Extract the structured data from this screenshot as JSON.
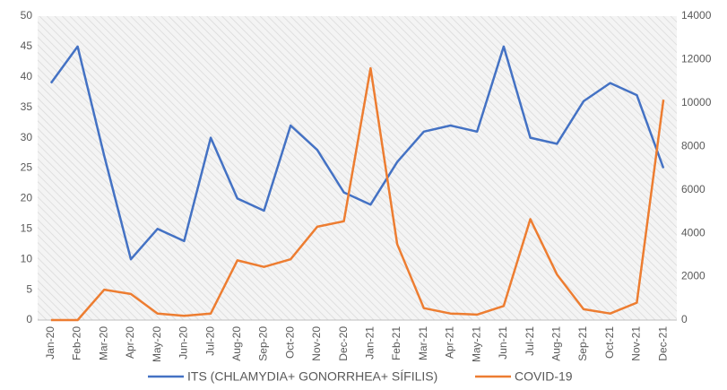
{
  "chart_data": {
    "type": "line",
    "categories": [
      "Jan-20",
      "Feb-20",
      "Mar-20",
      "Apr-20",
      "May-20",
      "Jun-20",
      "Jul-20",
      "Aug-20",
      "Sep-20",
      "Oct-20",
      "Nov-20",
      "Dec-20",
      "Jan-21",
      "Feb-21",
      "Mar-21",
      "Apr-21",
      "May-21",
      "Jun-21",
      "Jul-21",
      "Aug-21",
      "Sep-21",
      "Oct-21",
      "Nov-21",
      "Dec-21"
    ],
    "series": [
      {
        "name": "ITS (CHLAMYDIA+ GONORRHEA+ SÍFILIS)",
        "color": "#4472c4",
        "axis": "y",
        "values": [
          39,
          45,
          27,
          10,
          15,
          13,
          30,
          20,
          18,
          32,
          28,
          21,
          19,
          26,
          31,
          32,
          31,
          45,
          30,
          29,
          36,
          39,
          37,
          25
        ]
      },
      {
        "name": "COVID-19",
        "color": "#ed7d31",
        "axis": "y2",
        "values": [
          0,
          0,
          1400,
          1200,
          300,
          200,
          300,
          2750,
          2450,
          2800,
          4300,
          4550,
          11600,
          3500,
          550,
          300,
          250,
          650,
          4650,
          2100,
          500,
          300,
          800,
          10150
        ]
      }
    ],
    "ylim": [
      0,
      50
    ],
    "yticks": [
      0,
      5,
      10,
      15,
      20,
      25,
      30,
      35,
      40,
      45,
      50
    ],
    "y2lim": [
      0,
      14000
    ],
    "y2ticks": [
      0,
      2000,
      4000,
      6000,
      8000,
      10000,
      12000,
      14000
    ],
    "legend": "bottom"
  }
}
